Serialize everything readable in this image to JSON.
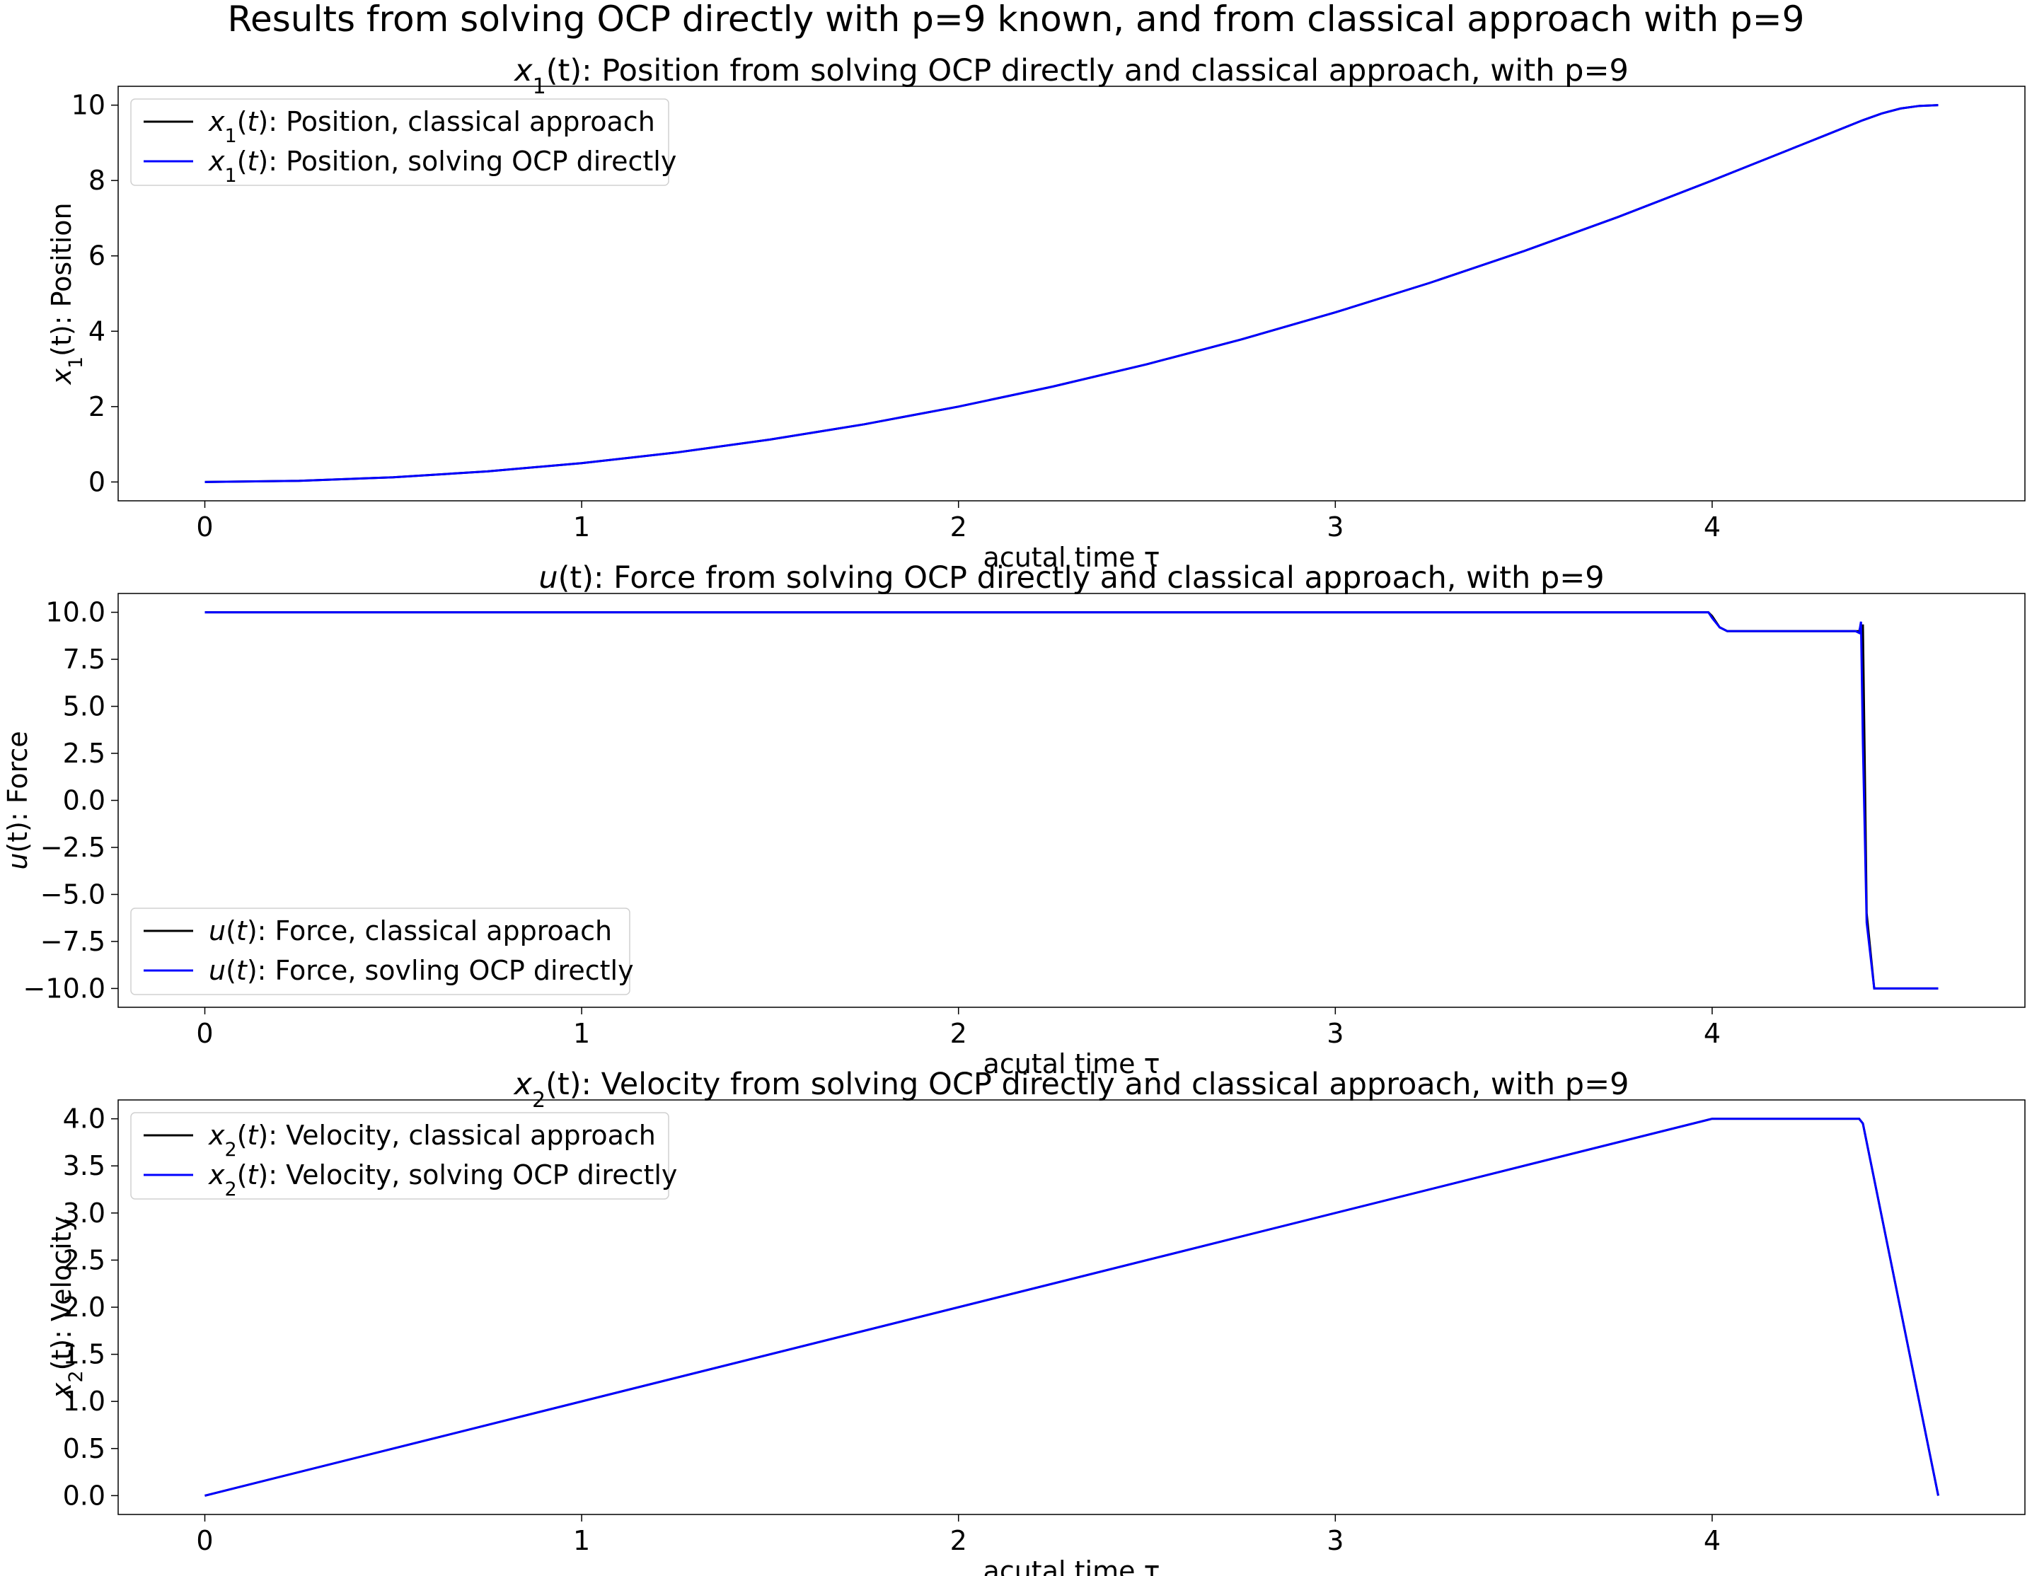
{
  "figure": {
    "suptitle": "Results from solving OCP directly with p=9 known, and from classical approach with p=9"
  },
  "chart_data": [
    {
      "type": "line",
      "title_var": "x",
      "title_sub": "1",
      "title_rest": "(t): Position from solving OCP directly and classical approach, with p=9",
      "xlabel": "acutal time τ",
      "ylabel_var": "x",
      "ylabel_sub": "1",
      "ylabel_rest": "(t): Position",
      "xlim": [
        -0.23,
        4.83
      ],
      "ylim": [
        -0.5,
        10.5
      ],
      "xticks": [
        0,
        1,
        2,
        3,
        4
      ],
      "yticks": [
        0,
        2,
        4,
        6,
        8,
        10
      ],
      "ytick_labels": [
        "0",
        "2",
        "4",
        "6",
        "8",
        "10"
      ],
      "legend_loc": "upper-left",
      "series": [
        {
          "legend_var": "x",
          "legend_sub": "1",
          "legend_arg": "(t)",
          "legend_text": ": Position, classical approach",
          "color": "#000000",
          "x": [
            0,
            0.25,
            0.5,
            0.75,
            1,
            1.25,
            1.5,
            1.75,
            2,
            2.25,
            2.5,
            2.75,
            3,
            3.25,
            3.5,
            3.75,
            4,
            4.1,
            4.2,
            4.3,
            4.4,
            4.45,
            4.5,
            4.55,
            4.6
          ],
          "y": [
            0,
            0.031,
            0.125,
            0.281,
            0.5,
            0.781,
            1.125,
            1.531,
            2.0,
            2.531,
            3.125,
            3.781,
            4.5,
            5.281,
            6.125,
            7.031,
            8.0,
            8.4,
            8.8,
            9.2,
            9.6,
            9.78,
            9.91,
            9.98,
            10.0
          ]
        },
        {
          "legend_var": "x",
          "legend_sub": "1",
          "legend_arg": "(t)",
          "legend_text": ": Position, solving OCP directly",
          "color": "#0000ff",
          "x": [
            0,
            0.25,
            0.5,
            0.75,
            1,
            1.25,
            1.5,
            1.75,
            2,
            2.25,
            2.5,
            2.75,
            3,
            3.25,
            3.5,
            3.75,
            4,
            4.1,
            4.2,
            4.3,
            4.4,
            4.45,
            4.5,
            4.55,
            4.6
          ],
          "y": [
            0,
            0.031,
            0.125,
            0.281,
            0.5,
            0.781,
            1.125,
            1.531,
            2.0,
            2.531,
            3.125,
            3.781,
            4.5,
            5.281,
            6.125,
            7.031,
            8.0,
            8.4,
            8.8,
            9.2,
            9.6,
            9.78,
            9.91,
            9.98,
            10.0
          ]
        }
      ]
    },
    {
      "type": "line",
      "title_var": "u",
      "title_sub": "",
      "title_rest": "(t): Force from solving OCP directly and classical approach, with p=9",
      "xlabel": "acutal time τ",
      "ylabel_var": "u",
      "ylabel_sub": "",
      "ylabel_rest": "(t): Force",
      "xlim": [
        -0.23,
        4.83
      ],
      "ylim": [
        -11.0,
        11.0
      ],
      "xticks": [
        0,
        1,
        2,
        3,
        4
      ],
      "yticks": [
        10.0,
        7.5,
        5.0,
        2.5,
        0.0,
        -2.5,
        -5.0,
        -7.5,
        -10.0
      ],
      "ytick_labels": [
        "10.0",
        "7.5",
        "5.0",
        "2.5",
        "0.0",
        "−2.5",
        "−5.0",
        "−7.5",
        "−10.0"
      ],
      "legend_loc": "lower-left",
      "series": [
        {
          "legend_var": "u",
          "legend_sub": "",
          "legend_arg": "(t)",
          "legend_text": ": Force, classical approach",
          "color": "#000000",
          "x": [
            0,
            3.99,
            4.0,
            4.02,
            4.04,
            4.39,
            4.395,
            4.4,
            4.405,
            4.41,
            4.43,
            4.6
          ],
          "y": [
            10,
            10,
            9.8,
            9.2,
            9.0,
            9.0,
            9.3,
            9.3,
            2.0,
            -6.0,
            -10.0,
            -10.0
          ]
        },
        {
          "legend_var": "u",
          "legend_sub": "",
          "legend_arg": "(t)",
          "legend_text": ": Force, sovling OCP directly",
          "color": "#0000ff",
          "x": [
            0,
            3.99,
            4.0,
            4.02,
            4.04,
            4.38,
            4.39,
            4.395,
            4.4,
            4.41,
            4.43,
            4.6
          ],
          "y": [
            10,
            10,
            9.7,
            9.2,
            9.0,
            9.0,
            8.9,
            9.5,
            3.0,
            -6.5,
            -10.0,
            -10.0
          ]
        }
      ]
    },
    {
      "type": "line",
      "title_var": "x",
      "title_sub": "2",
      "title_rest": "(t): Velocity from solving OCP directly and classical approach, with p=9",
      "xlabel": "acutal time τ",
      "ylabel_var": "x",
      "ylabel_sub": "2",
      "ylabel_rest": "(t): Velocity",
      "xlim": [
        -0.23,
        4.83
      ],
      "ylim": [
        -0.2,
        4.2
      ],
      "xticks": [
        0,
        1,
        2,
        3,
        4
      ],
      "yticks": [
        0.0,
        0.5,
        1.0,
        1.5,
        2.0,
        2.5,
        3.0,
        3.5,
        4.0
      ],
      "ytick_labels": [
        "0.0",
        "0.5",
        "1.0",
        "1.5",
        "2.0",
        "2.5",
        "3.0",
        "3.5",
        "4.0"
      ],
      "legend_loc": "upper-left",
      "series": [
        {
          "legend_var": "x",
          "legend_sub": "2",
          "legend_arg": "(t)",
          "legend_text": ": Velocity, classical approach",
          "color": "#000000",
          "x": [
            0,
            4.0,
            4.39,
            4.4,
            4.6
          ],
          "y": [
            0,
            4.0,
            4.0,
            3.95,
            0.0
          ]
        },
        {
          "legend_var": "x",
          "legend_sub": "2",
          "legend_arg": "(t)",
          "legend_text": ": Velocity, solving OCP directly",
          "color": "#0000ff",
          "x": [
            0,
            4.0,
            4.39,
            4.4,
            4.6
          ],
          "y": [
            0,
            4.0,
            4.0,
            3.95,
            0.0
          ]
        }
      ]
    }
  ]
}
